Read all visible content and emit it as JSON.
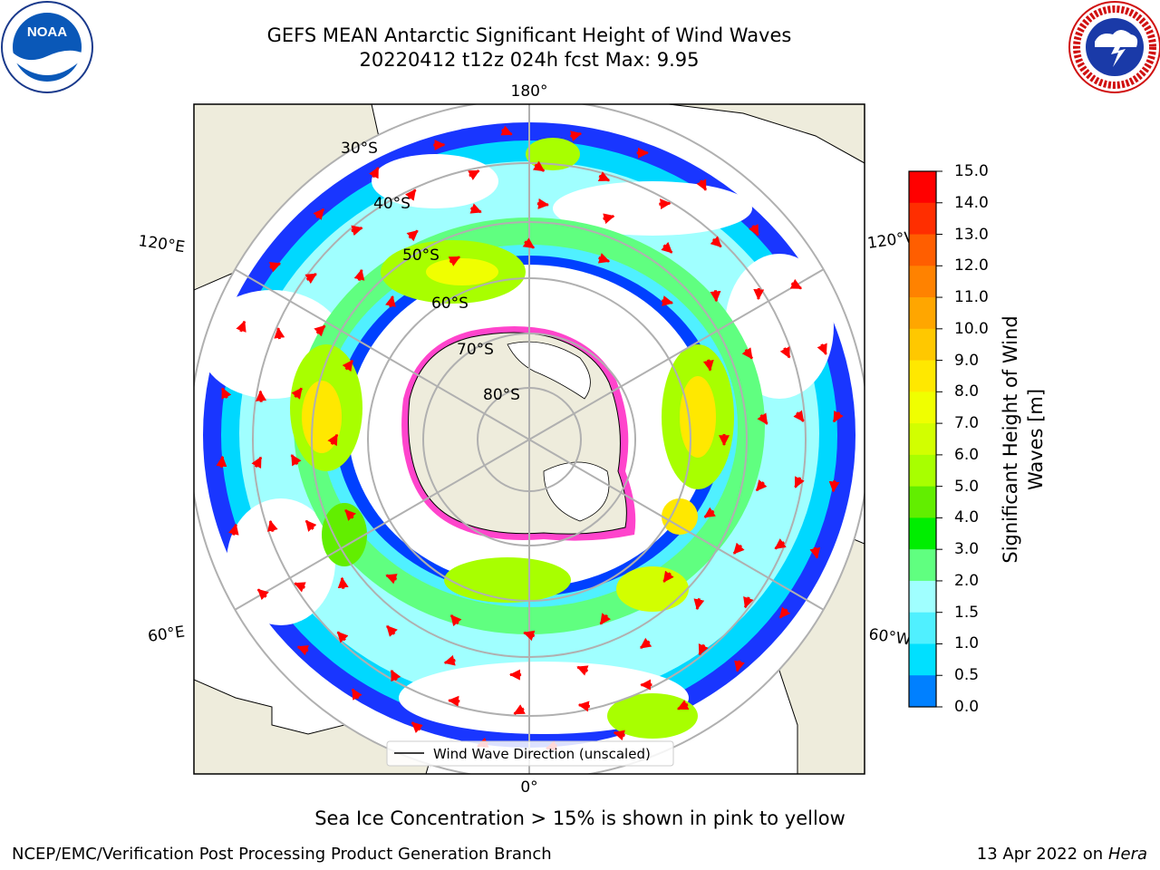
{
  "title": {
    "line1": "GEFS MEAN Antarctic Significant Height of Wind Waves",
    "line2": "20220412 t12z 024h fcst   Max: 9.95"
  },
  "logos": {
    "noaa_text": "NOAA",
    "noaa_ring": "NATIONAL OCEANIC AND ATMOSPHERIC ADMINISTRATION · U.S. DEPARTMENT OF COMMERCE",
    "nws_ring": "NATIONAL WEATHER SERVICE"
  },
  "map": {
    "projection": "south-polar-stereographic",
    "longitude_labels": {
      "top": "180°",
      "bottom": "0°",
      "left_upper": "120°E",
      "left_lower": "60°E",
      "right_upper": "120°W",
      "right_lower": "60°W"
    },
    "latitude_labels": [
      "30°S",
      "40°S",
      "50°S",
      "60°S",
      "70°S",
      "80°S"
    ],
    "legend_entry": "Wind Wave Direction (unscaled)",
    "colors": {
      "land": "#eeecdc",
      "ice_edge": "#ff44cc",
      "arrow": "#ff0000",
      "grid": "#b0b0b0"
    }
  },
  "colorbar": {
    "label": "Significant Height of Wind Waves [m]",
    "label_line1": "Significant Height of Wind",
    "label_line2": "Waves [m]",
    "ticks": [
      "15.0",
      "14.0",
      "13.0",
      "12.0",
      "11.0",
      "10.0",
      "9.0",
      "8.0",
      "7.0",
      "6.0",
      "5.0",
      "4.0",
      "3.0",
      "2.0",
      "1.5",
      "1.0",
      "0.5",
      "0.0"
    ],
    "colors": [
      "#ff0000",
      "#ff2e00",
      "#ff5e00",
      "#ff8200",
      "#ffa600",
      "#ffc800",
      "#ffe800",
      "#f0ff00",
      "#d2ff00",
      "#a8ff00",
      "#62ee00",
      "#00ee00",
      "#60ff80",
      "#a0ffff",
      "#50f0ff",
      "#00e0ff",
      "#0080ff",
      "#0000ff"
    ]
  },
  "notes": {
    "ice": "Sea Ice Concentration > 15% is shown in pink to yellow",
    "credit": "NCEP/EMC/Verification Post Processing Product Generation Branch",
    "date_prefix": "13 Apr 2022 on ",
    "date_machine": "Hera"
  }
}
